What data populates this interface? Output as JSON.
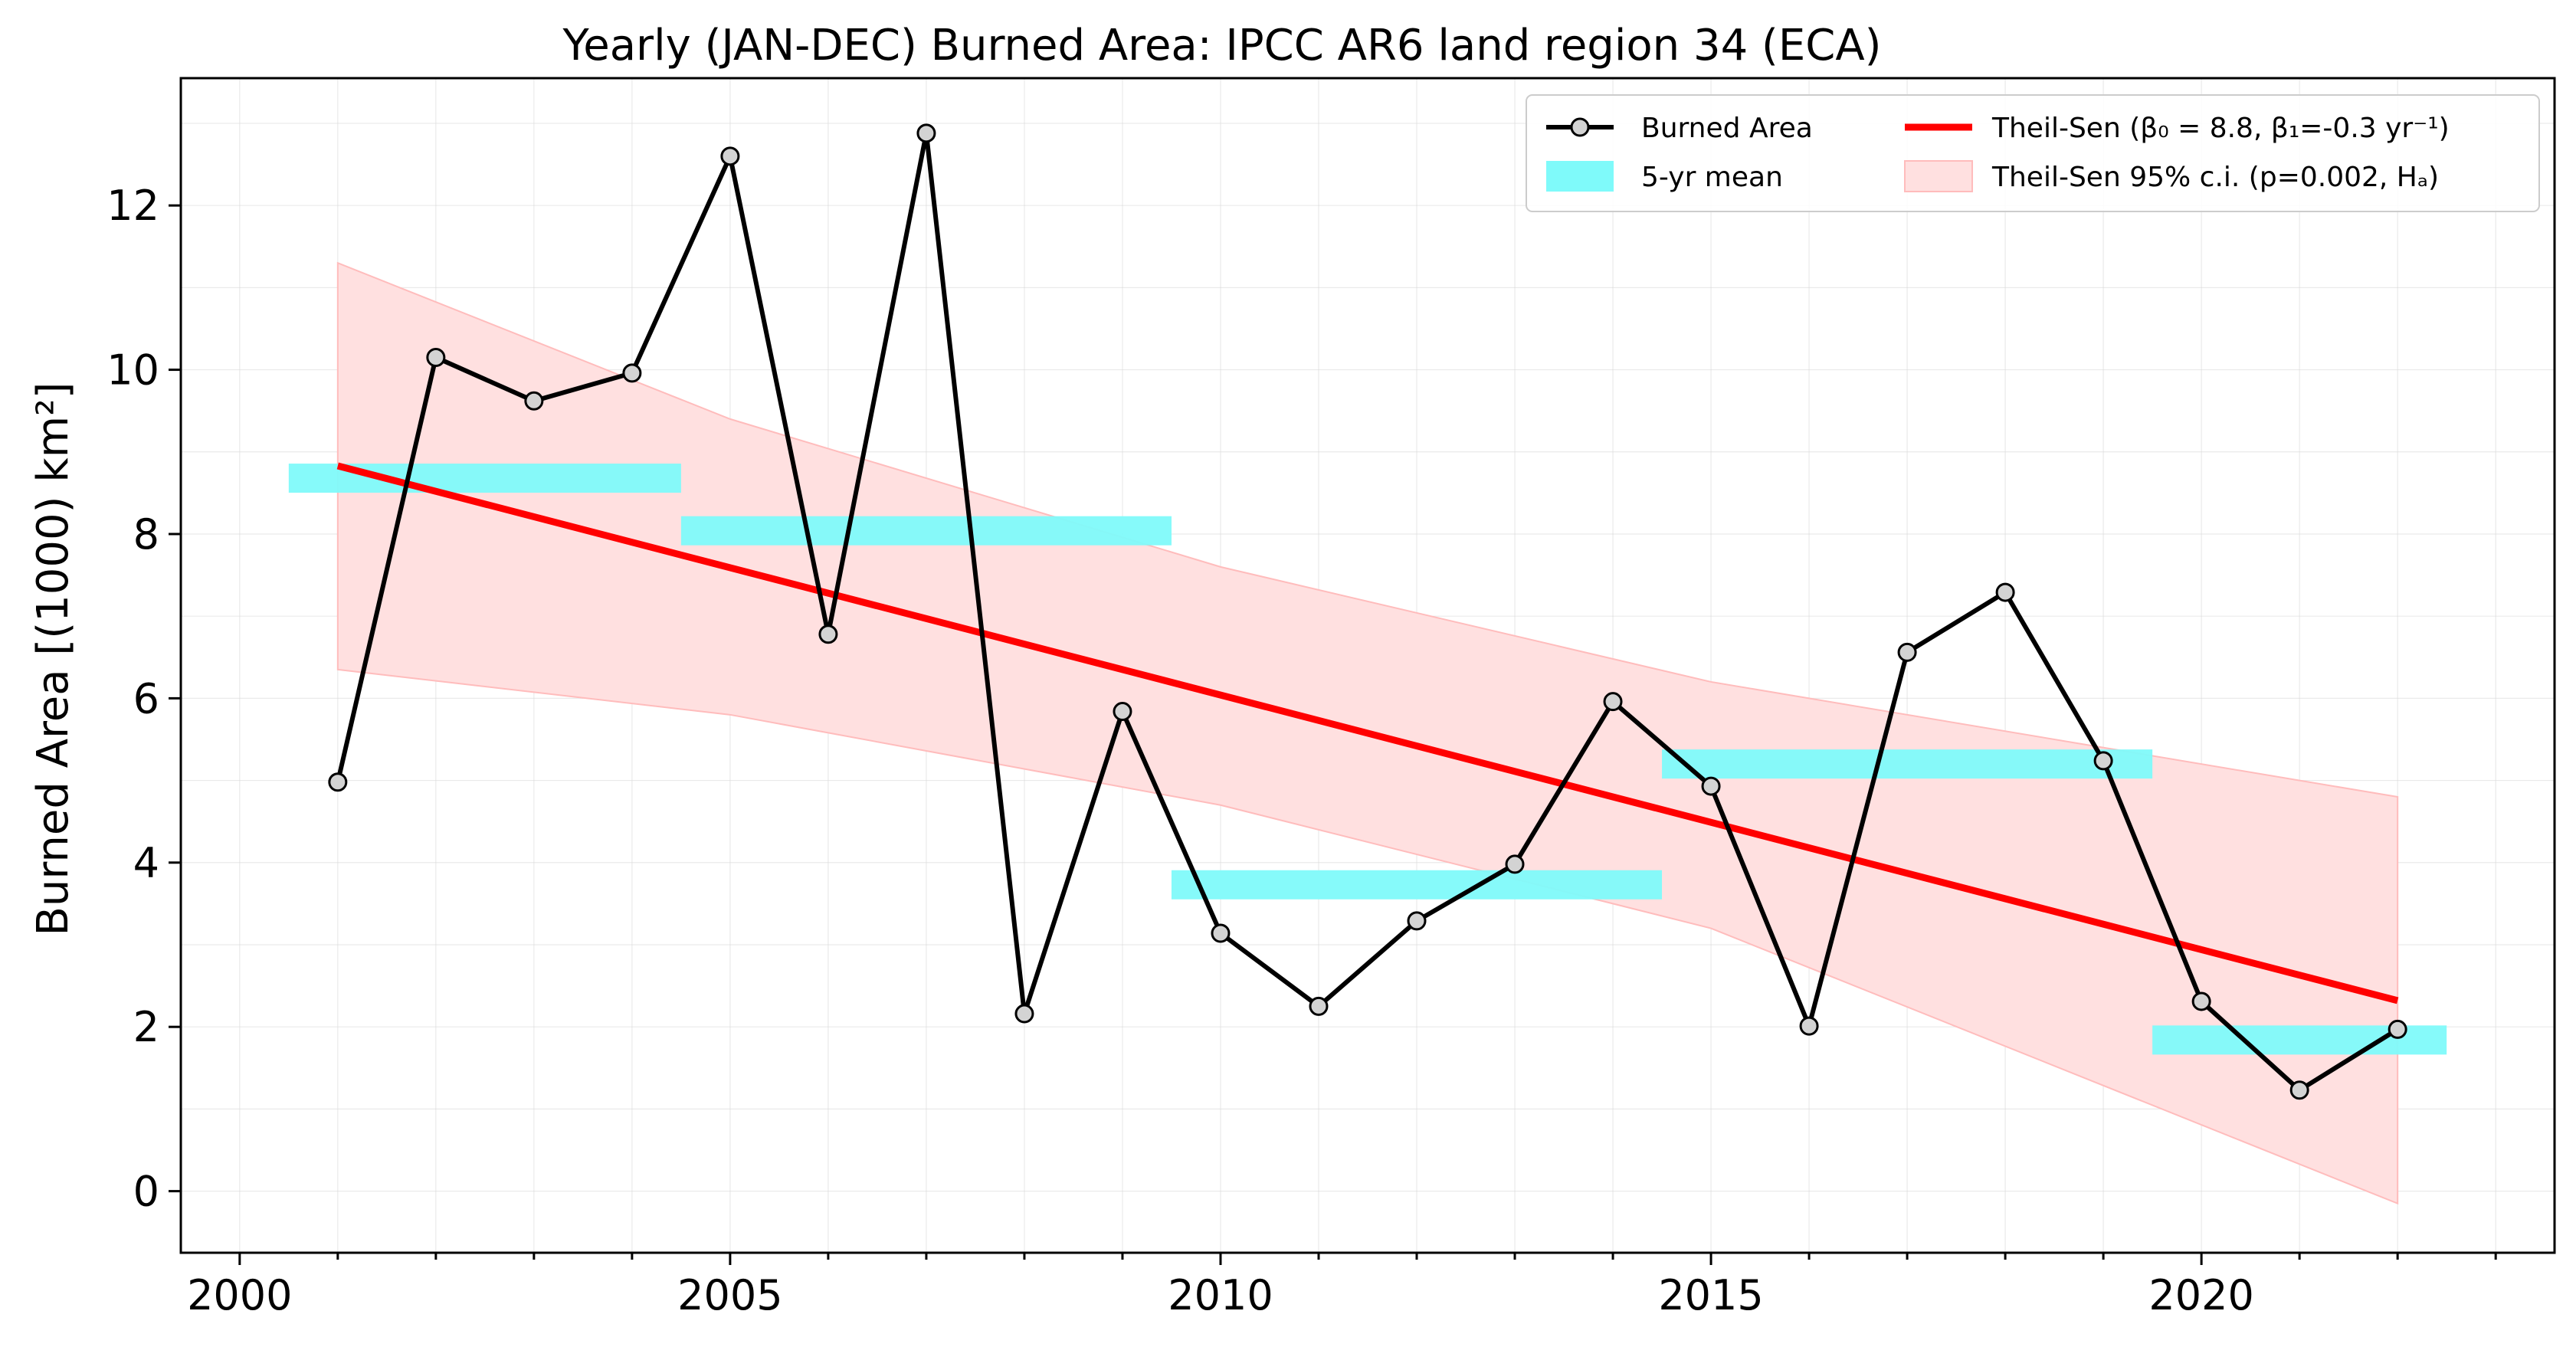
{
  "chart_data": {
    "type": "line",
    "title": "Yearly (JAN-DEC) Burned Area: IPCC AR6 land region 34 (ECA)",
    "xlabel": "",
    "ylabel": "Burned Area [(1000) km²]",
    "xlim": [
      1999.4,
      2023.6
    ],
    "ylim": [
      -0.75,
      13.55
    ],
    "x_ticks": [
      2000,
      2005,
      2010,
      2015,
      2020
    ],
    "x_tick_labels": [
      "2000",
      "2005",
      "2010",
      "2015",
      "2020"
    ],
    "y_ticks": [
      0,
      2,
      4,
      6,
      8,
      10,
      12
    ],
    "y_tick_labels": [
      "0",
      "2",
      "4",
      "6",
      "8",
      "10",
      "12"
    ],
    "grid": true,
    "legend_position": "top-right",
    "legend": {
      "burned_area": "Burned Area",
      "five_yr_mean": "5-yr mean",
      "theil_sen": "Theil-Sen (β₀ = 8.8, β₁=-0.3 yr⁻¹)",
      "theil_sen_ci": "Theil-Sen 95% c.i. (p=0.002, Hₐ)"
    },
    "series": [
      {
        "name": "Burned Area",
        "x": [
          2001,
          2002,
          2003,
          2004,
          2005,
          2006,
          2007,
          2008,
          2009,
          2010,
          2011,
          2012,
          2013,
          2014,
          2015,
          2016,
          2017,
          2018,
          2019,
          2020,
          2021,
          2022
        ],
        "values": [
          4.98,
          10.15,
          9.62,
          9.96,
          12.6,
          6.78,
          12.88,
          2.16,
          5.84,
          3.14,
          2.25,
          3.29,
          3.98,
          5.96,
          4.93,
          2.01,
          6.56,
          7.29,
          5.24,
          2.31,
          1.23,
          1.97
        ]
      }
    ],
    "five_yr_mean": [
      {
        "x_start": 2000.5,
        "x_end": 2004.5,
        "value": 8.68
      },
      {
        "x_start": 2004.5,
        "x_end": 2009.5,
        "value": 8.04
      },
      {
        "x_start": 2009.5,
        "x_end": 2014.5,
        "value": 3.73
      },
      {
        "x_start": 2014.5,
        "x_end": 2019.5,
        "value": 5.2
      },
      {
        "x_start": 2019.5,
        "x_end": 2022.5,
        "value": 1.84
      }
    ],
    "theil_sen": {
      "x": [
        2001,
        2022
      ],
      "values": [
        8.83,
        2.32
      ]
    },
    "theil_sen_ci": {
      "x": [
        2001,
        2005,
        2010,
        2015,
        2022
      ],
      "upper": [
        11.3,
        9.4,
        7.6,
        6.2,
        4.8
      ],
      "lower": [
        6.35,
        5.8,
        4.7,
        3.2,
        -0.15
      ]
    },
    "colors": {
      "burned_area_line": "#000000",
      "marker_fill": "#d3d3d3",
      "five_yr_mean": "#7ffafa",
      "theil_sen": "#ff0000",
      "ci_fill": "#ffe0e0",
      "ci_edge": "#ffbcbc"
    }
  }
}
